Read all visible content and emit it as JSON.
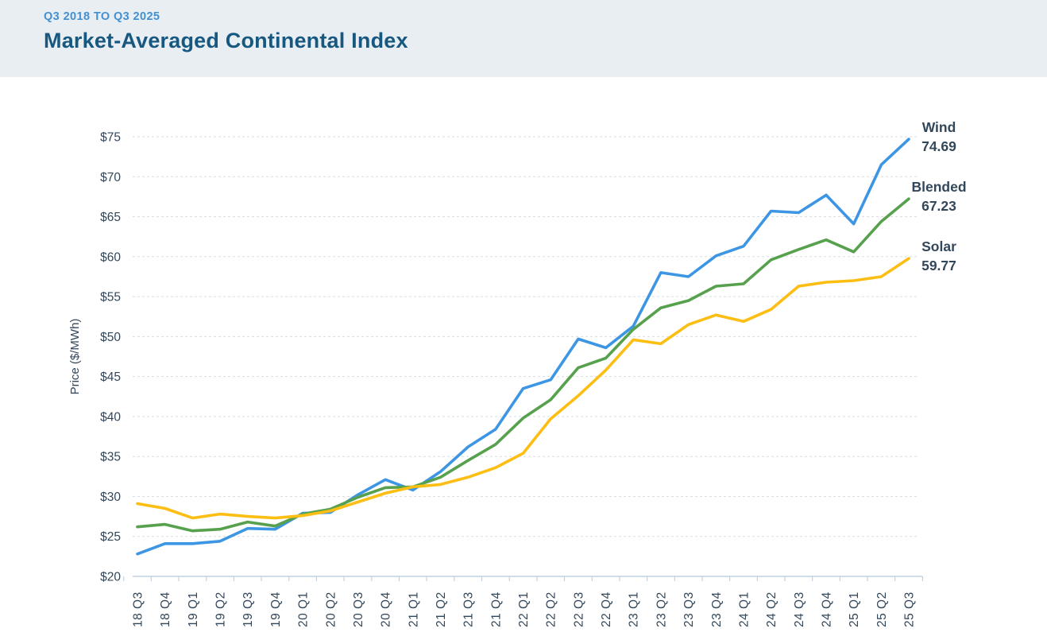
{
  "header": {
    "subtitle": "Q3 2018 TO Q3 2025",
    "title": "Market-Averaged Continental Index"
  },
  "chart_data": {
    "type": "line",
    "title": "Market-Averaged Continental Index",
    "subtitle": "Q3 2018 TO Q3 2025",
    "xlabel": "",
    "ylabel": "Price ($/MWh)",
    "ylim": [
      20,
      75
    ],
    "ytick_step": 5,
    "ytick_prefix": "$",
    "grid": "horizontal dashed",
    "legend_position": "right end-of-line labels",
    "categories": [
      "18 Q3",
      "18 Q4",
      "19 Q1",
      "19 Q2",
      "19 Q3",
      "19 Q4",
      "20 Q1",
      "20 Q2",
      "20 Q3",
      "20 Q4",
      "21 Q1",
      "21 Q2",
      "21 Q3",
      "21 Q4",
      "22 Q1",
      "22 Q2",
      "22 Q3",
      "22 Q4",
      "23 Q1",
      "23 Q2",
      "23 Q3",
      "23 Q4",
      "24 Q1",
      "24 Q2",
      "24 Q3",
      "24 Q4",
      "25 Q1",
      "25 Q2",
      "25 Q3"
    ],
    "series": [
      {
        "name": "Wind",
        "color": "#3d96e3",
        "end_label": "74.69",
        "values": [
          22.8,
          24.1,
          24.1,
          24.4,
          26.0,
          25.9,
          27.9,
          28.0,
          30.2,
          32.1,
          30.8,
          33.1,
          36.2,
          38.4,
          43.5,
          44.6,
          49.7,
          48.6,
          51.3,
          58.0,
          57.5,
          60.1,
          61.3,
          65.7,
          65.5,
          67.7,
          64.1,
          71.5,
          74.69
        ]
      },
      {
        "name": "Blended",
        "color": "#57a14e",
        "end_label": "67.23",
        "values": [
          26.2,
          26.5,
          25.7,
          25.9,
          26.8,
          26.3,
          27.8,
          28.4,
          29.9,
          31.1,
          31.2,
          32.4,
          34.5,
          36.5,
          39.8,
          42.1,
          46.1,
          47.3,
          50.9,
          53.6,
          54.5,
          56.3,
          56.6,
          59.6,
          60.9,
          62.1,
          60.6,
          64.4,
          67.23
        ]
      },
      {
        "name": "Solar",
        "color": "#fcbe12",
        "end_label": "59.77",
        "values": [
          29.1,
          28.5,
          27.3,
          27.8,
          27.5,
          27.3,
          27.6,
          28.2,
          29.3,
          30.4,
          31.2,
          31.5,
          32.4,
          33.6,
          35.4,
          39.7,
          42.6,
          45.8,
          49.6,
          49.1,
          51.5,
          52.7,
          51.9,
          53.4,
          56.3,
          56.8,
          57.0,
          57.5,
          59.77
        ]
      }
    ]
  },
  "style_colors": {
    "header_bg": "#e9eef3",
    "subtitle_text": "#4190d2",
    "title_text": "#16587f",
    "axis_text": "#33475b",
    "gridline": "#d4dfea",
    "axis_line": "#c3d2e0"
  }
}
